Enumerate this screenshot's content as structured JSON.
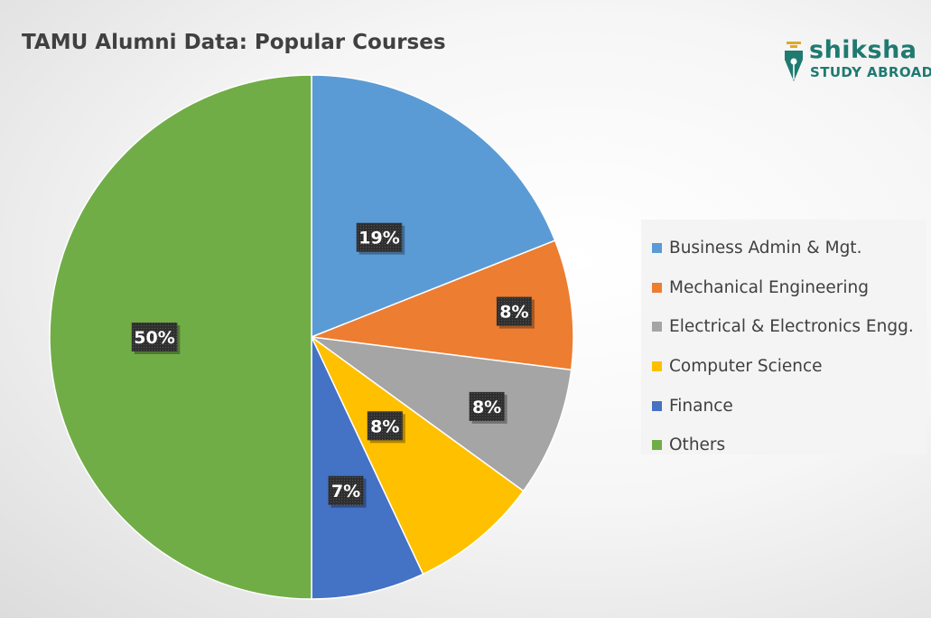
{
  "logo": {
    "brand": "shiksha",
    "sub": "STUDY ABROAD",
    "color": "#1f7a70"
  },
  "chart_data": {
    "type": "pie",
    "title": "TAMU Alumni Data: Popular Courses",
    "categories": [
      "Business Admin & Mgt.",
      "Mechanical Engineering",
      "Electrical & Electronics Engg.",
      "Computer Science",
      "Finance",
      "Others"
    ],
    "values": [
      19,
      8,
      8,
      8,
      7,
      50
    ],
    "labels": [
      "19%",
      "8%",
      "8%",
      "8%",
      "7%",
      "50%"
    ],
    "colors": [
      "#5b9bd5",
      "#ed7d31",
      "#a5a5a5",
      "#ffc000",
      "#4472c4",
      "#70ad47"
    ],
    "legend_position": "right",
    "start_angle_deg": 0,
    "direction": "clockwise"
  }
}
